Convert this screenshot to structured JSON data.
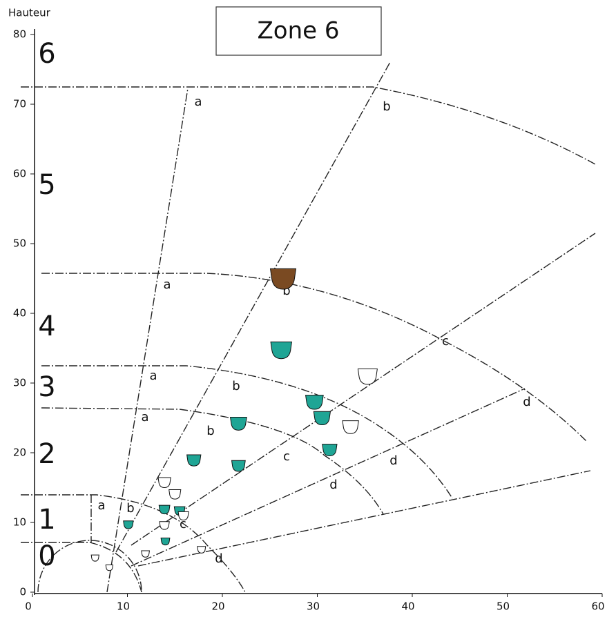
{
  "chart_data": {
    "type": "scatter",
    "title": "Zone 6",
    "y_label": "Hauteur",
    "xlim": [
      0,
      60
    ],
    "xticks": [
      0,
      10,
      20,
      30,
      40,
      50,
      60
    ],
    "ylim": [
      0,
      80
    ],
    "yticks": [
      0,
      10,
      20,
      30,
      40,
      50,
      60,
      70,
      80
    ],
    "x": [
      26.4,
      26.2,
      35.3,
      29.7,
      30.5,
      33.5,
      31.3,
      21.7,
      21.7,
      17.0,
      13.9,
      15.0,
      13.9,
      15.5,
      15.9,
      10.1,
      13.9,
      14.0,
      11.9,
      17.8,
      6.6,
      8.1
    ],
    "values": [
      45.3,
      35.0,
      31.2,
      27.5,
      25.2,
      23.9,
      20.6,
      24.4,
      18.3,
      19.1,
      15.9,
      14.2,
      12.0,
      11.8,
      11.1,
      9.8,
      9.7,
      7.4,
      5.6,
      6.2,
      5.0,
      3.6
    ],
    "colors": [
      "#7a4a22",
      "#1fa595",
      "#ffffff",
      "#1fa595",
      "#1fa595",
      "#ffffff",
      "#1fa595",
      "#1fa595",
      "#1fa595",
      "#1fa595",
      "#ffffff",
      "#ffffff",
      "#1fa595",
      "#1fa595",
      "#ffffff",
      "#1fa595",
      "#ffffff",
      "#1fa595",
      "#ffffff",
      "#ffffff",
      "#ffffff",
      "#ffffff"
    ],
    "zones": [
      "0",
      "1",
      "2",
      "3",
      "4",
      "5",
      "6"
    ],
    "annotations": [
      "a",
      "b",
      "a",
      "b",
      "c",
      "a",
      "b",
      "d",
      "a",
      "b",
      "c",
      "d",
      "d",
      "a",
      "b",
      "c",
      "d"
    ]
  }
}
